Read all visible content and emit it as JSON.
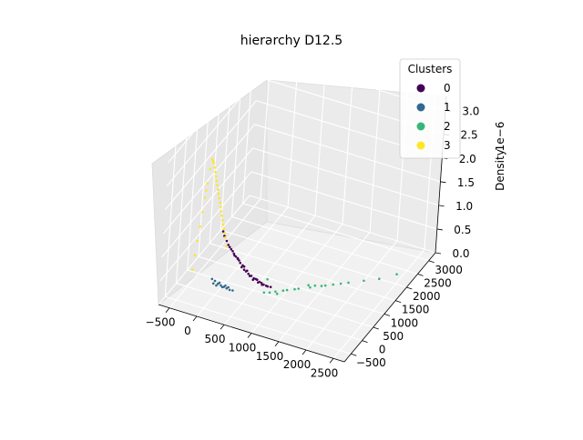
{
  "chart_data": {
    "type": "scatter",
    "projection": "3d",
    "title": "hierarchy D12.5",
    "xlabel": "",
    "ylabel": "",
    "zlabel": "Density",
    "z_offset_label": "1e−6",
    "x_ticks": [
      "−500",
      "0",
      "500",
      "1000",
      "1500",
      "2000",
      "2500"
    ],
    "y_ticks": [
      "−500",
      "0",
      "500",
      "1000",
      "1500",
      "2000",
      "2500",
      "3000"
    ],
    "z_ticks": [
      "0.0",
      "0.5",
      "1.0",
      "1.5",
      "2.0",
      "2.5",
      "3.0"
    ],
    "xlim": [
      -700,
      2700
    ],
    "ylim": [
      -800,
      3300
    ],
    "zlim": [
      0,
      3.3e-06
    ],
    "grid": true,
    "legend": {
      "title": "Clusters",
      "placement": "top-right",
      "entries": [
        {
          "label": "0",
          "color": "#440154"
        },
        {
          "label": "1",
          "color": "#31688e"
        },
        {
          "label": "2",
          "color": "#35b779"
        },
        {
          "label": "3",
          "color": "#fde725"
        }
      ]
    },
    "series": [
      {
        "name": "0",
        "color": "#440154",
        "points": [
          [
            60,
            120,
            1.2e-06
          ],
          [
            120,
            180,
            1e-06
          ],
          [
            200,
            260,
            8e-07
          ],
          [
            260,
            300,
            7e-07
          ],
          [
            320,
            360,
            5e-07
          ],
          [
            380,
            420,
            4e-07
          ],
          [
            440,
            460,
            3e-07
          ],
          [
            480,
            520,
            2e-07
          ],
          [
            560,
            560,
            1.5e-07
          ],
          [
            620,
            600,
            1e-07
          ],
          [
            100,
            140,
            1.1e-06
          ],
          [
            160,
            220,
            9e-07
          ],
          [
            240,
            260,
            7.5e-07
          ],
          [
            300,
            330,
            6e-07
          ],
          [
            360,
            380,
            4.5e-07
          ],
          [
            420,
            440,
            3.5e-07
          ],
          [
            500,
            500,
            2.5e-07
          ],
          [
            540,
            560,
            2e-07
          ],
          [
            600,
            620,
            1.2e-07
          ],
          [
            680,
            640,
            8e-08
          ],
          [
            40,
            100,
            1.3e-06
          ],
          [
            140,
            200,
            9.5e-07
          ],
          [
            220,
            240,
            7.8e-07
          ],
          [
            280,
            320,
            6.5e-07
          ],
          [
            340,
            350,
            5.5e-07
          ],
          [
            400,
            420,
            4.2e-07
          ],
          [
            460,
            480,
            3e-07
          ],
          [
            520,
            540,
            2.2e-07
          ],
          [
            580,
            580,
            1.6e-07
          ],
          [
            640,
            620,
            1e-07
          ],
          [
            700,
            660,
            6e-08
          ],
          [
            740,
            700,
            4e-08
          ],
          [
            180,
            250,
            8.5e-07
          ],
          [
            270,
            280,
            7e-07
          ],
          [
            350,
            400,
            5e-07
          ]
        ]
      },
      {
        "name": "1",
        "color": "#31688e",
        "points": [
          [
            0,
            -100,
            3e-07
          ],
          [
            40,
            -60,
            2.5e-07
          ],
          [
            80,
            -20,
            3e-07
          ],
          [
            120,
            20,
            2e-07
          ],
          [
            160,
            60,
            2.2e-07
          ],
          [
            200,
            100,
            1.8e-07
          ],
          [
            20,
            -80,
            3.5e-07
          ],
          [
            60,
            -40,
            2.8e-07
          ],
          [
            100,
            0,
            2.4e-07
          ],
          [
            140,
            40,
            2e-07
          ],
          [
            180,
            80,
            1.6e-07
          ],
          [
            220,
            120,
            1.2e-07
          ],
          [
            -20,
            -120,
            4e-07
          ],
          [
            260,
            160,
            1e-07
          ]
        ]
      },
      {
        "name": "2",
        "color": "#35b779",
        "points": [
          [
            700,
            500,
            2e-08
          ],
          [
            850,
            650,
            1e-08
          ],
          [
            1000,
            800,
            1e-08
          ],
          [
            1150,
            950,
            1e-08
          ],
          [
            1300,
            1100,
            5e-09
          ],
          [
            1450,
            1250,
            5e-09
          ],
          [
            1600,
            1400,
            4e-09
          ],
          [
            1800,
            1600,
            3e-09
          ],
          [
            2000,
            1800,
            2e-09
          ],
          [
            2200,
            2000,
            2e-09
          ],
          [
            900,
            600,
            1e-08
          ],
          [
            1100,
            900,
            8e-09
          ],
          [
            1250,
            1150,
            6e-09
          ],
          [
            1500,
            1300,
            4e-09
          ],
          [
            1700,
            1500,
            3e-09
          ],
          [
            950,
            750,
            9e-09
          ],
          [
            1350,
            1200,
            5e-09
          ],
          [
            2400,
            2300,
            1e-09
          ],
          [
            600,
            900,
            4e-08
          ],
          [
            780,
            560,
            1.5e-08
          ]
        ]
      },
      {
        "name": "3",
        "color": "#fde725",
        "points": [
          [
            -100,
            -300,
            3e-06
          ],
          [
            -80,
            -260,
            2.9e-06
          ],
          [
            -60,
            -220,
            2.7e-06
          ],
          [
            -40,
            -180,
            2.5e-06
          ],
          [
            -20,
            -140,
            2.3e-06
          ],
          [
            0,
            -100,
            2.1e-06
          ],
          [
            20,
            -60,
            1.9e-06
          ],
          [
            40,
            -20,
            1.7e-06
          ],
          [
            60,
            20,
            1.5e-06
          ],
          [
            80,
            60,
            1.3e-06
          ],
          [
            -120,
            -320,
            2.8e-06
          ],
          [
            -140,
            -340,
            2.5e-06
          ],
          [
            -160,
            -360,
            2.2e-06
          ],
          [
            -180,
            -380,
            1.9e-06
          ],
          [
            -200,
            -400,
            1.6e-06
          ],
          [
            -220,
            -420,
            1.3e-06
          ],
          [
            -240,
            -440,
            1e-06
          ],
          [
            -260,
            -460,
            7e-07
          ],
          [
            -90,
            -280,
            2.95e-06
          ],
          [
            -70,
            -240,
            2.8e-06
          ],
          [
            -50,
            -200,
            2.6e-06
          ],
          [
            -30,
            -160,
            2.4e-06
          ],
          [
            -10,
            -120,
            2.2e-06
          ],
          [
            10,
            -80,
            2e-06
          ],
          [
            30,
            -40,
            1.8e-06
          ],
          [
            50,
            0,
            1.6e-06
          ],
          [
            70,
            40,
            1.4e-06
          ],
          [
            90,
            80,
            1.2e-06
          ],
          [
            110,
            120,
            1e-06
          ],
          [
            -150,
            -350,
            2.35e-06
          ]
        ]
      }
    ]
  }
}
